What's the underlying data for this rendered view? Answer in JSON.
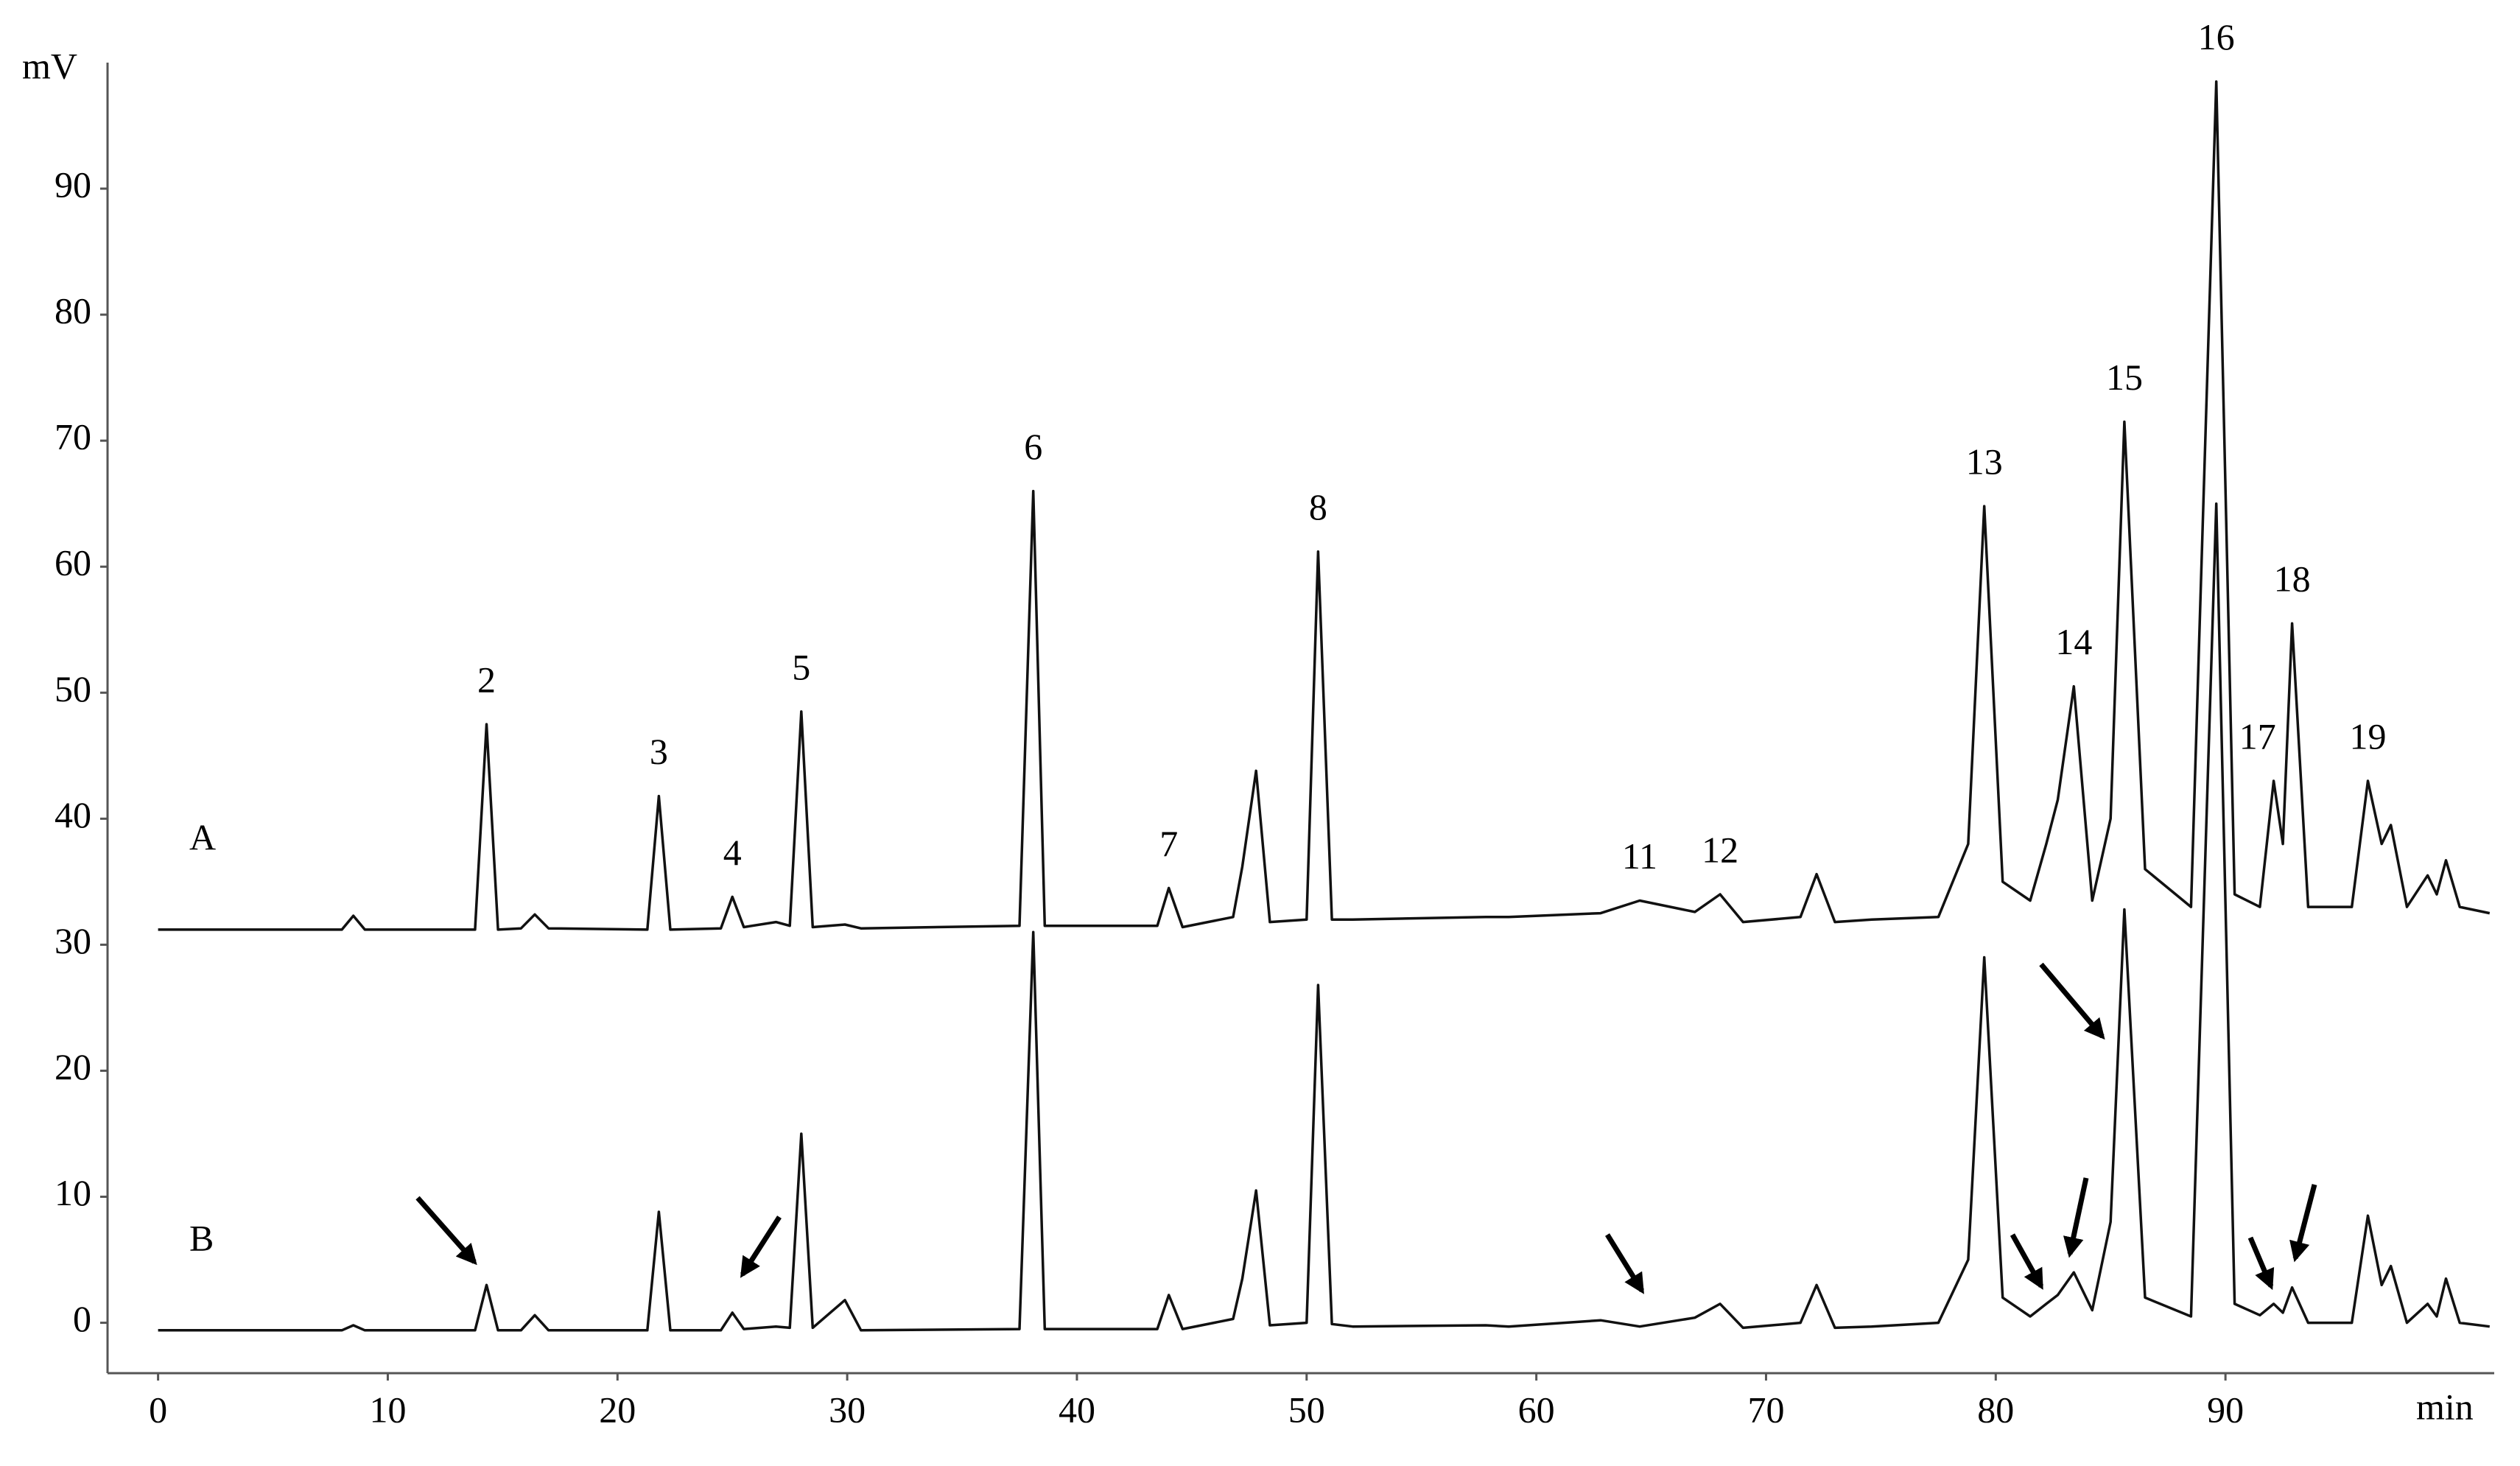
{
  "chart_data": {
    "type": "line",
    "y_label": "mV",
    "x_label": "min",
    "xlim": [
      -2.2,
      101.7
    ],
    "ylim": [
      -4,
      100
    ],
    "xticks": [
      0,
      10,
      20,
      30,
      40,
      50,
      60,
      70,
      80,
      90
    ],
    "yticks": [
      0,
      10,
      20,
      30,
      40,
      50,
      60,
      70,
      80,
      90
    ],
    "grid": false,
    "x": [
      0,
      2,
      8.0,
      8.5,
      9.0,
      13.8,
      14.3,
      14.8,
      15.8,
      16.4,
      17.0,
      21.3,
      21.8,
      22.3,
      24.5,
      25.0,
      25.5,
      26.9,
      27.5,
      28.0,
      28.5,
      29.9,
      30.6,
      37.5,
      38.1,
      38.6,
      43.5,
      44.0,
      44.6,
      46.8,
      47.2,
      47.8,
      48.4,
      50.0,
      50.5,
      51.1,
      52.0,
      57.8,
      58.8,
      62.8,
      64.5,
      66.9,
      68.0,
      69.0,
      71.5,
      72.2,
      73.0,
      74.6,
      77.5,
      78.8,
      79.5,
      80.3,
      81.5,
      82.2,
      82.7,
      83.4,
      84.2,
      85.0,
      85.6,
      86.5,
      88.5,
      89.6,
      90.4,
      91.5,
      92.1,
      92.5,
      92.9,
      93.6,
      95.5,
      96.2,
      96.8,
      97.2,
      97.9,
      98.8,
      99.2,
      99.6,
      100.2,
      101.5
    ],
    "series": [
      {
        "name": "A",
        "color": "#111111",
        "values": [
          31.2,
          31.2,
          31.2,
          32.3,
          31.2,
          31.2,
          47.5,
          31.2,
          31.3,
          32.4,
          31.3,
          31.2,
          41.8,
          31.2,
          31.3,
          33.8,
          31.4,
          31.8,
          31.5,
          48.5,
          31.4,
          31.6,
          31.3,
          31.5,
          66.0,
          31.5,
          31.5,
          34.5,
          31.4,
          32.2,
          36.2,
          43.8,
          31.8,
          32.0,
          61.2,
          32.0,
          32.0,
          32.2,
          32.2,
          32.5,
          33.5,
          32.6,
          34.0,
          31.8,
          32.2,
          35.6,
          31.8,
          32.0,
          32.2,
          38,
          64.8,
          35,
          33.5,
          38,
          41.5,
          50.5,
          33.5,
          40,
          71.5,
          36,
          33,
          98.5,
          34,
          33,
          43.0,
          38,
          55.5,
          33,
          33,
          43.0,
          38,
          39.5,
          33,
          35.5,
          34,
          36.7,
          33,
          32.5
        ]
      },
      {
        "name": "B",
        "color": "#111111",
        "values": [
          -0.6,
          -0.6,
          -0.6,
          -0.2,
          -0.6,
          -0.6,
          3.0,
          -0.6,
          -0.6,
          0.6,
          -0.6,
          -0.6,
          8.8,
          -0.6,
          -0.6,
          0.8,
          -0.5,
          -0.3,
          -0.4,
          15.0,
          -0.4,
          1.8,
          -0.6,
          -0.5,
          31.0,
          -0.5,
          -0.5,
          2.2,
          -0.5,
          0.3,
          3.5,
          10.5,
          -0.2,
          0,
          26.8,
          -0.1,
          -0.3,
          -0.2,
          -0.3,
          0.2,
          -0.3,
          0.4,
          1.5,
          -0.4,
          0,
          3.0,
          -0.4,
          -0.3,
          0,
          5,
          29.0,
          2,
          0.5,
          1.5,
          2.2,
          4.0,
          1,
          8,
          32.8,
          2,
          0.5,
          65.0,
          1.5,
          0.6,
          1.5,
          0.8,
          2.8,
          0,
          0,
          8.5,
          3,
          4.5,
          0,
          1.5,
          0.5,
          3.5,
          0,
          -0.3
        ]
      }
    ],
    "annotations": [
      {
        "text": "2",
        "x": 14.3,
        "y": 47.5
      },
      {
        "text": "3",
        "x": 21.8,
        "y": 41.8
      },
      {
        "text": "4",
        "x": 25.0,
        "y": 33.8
      },
      {
        "text": "5",
        "x": 28.0,
        "y": 48.5
      },
      {
        "text": "6",
        "x": 38.1,
        "y": 66.0
      },
      {
        "text": "7",
        "x": 44.0,
        "y": 34.5
      },
      {
        "text": "8",
        "x": 50.5,
        "y": 61.2
      },
      {
        "text": "11",
        "x": 64.5,
        "y": 33.5
      },
      {
        "text": "12",
        "x": 68.0,
        "y": 34.0
      },
      {
        "text": "13",
        "x": 79.5,
        "y": 64.8
      },
      {
        "text": "14",
        "x": 83.4,
        "y": 50.5
      },
      {
        "text": "15",
        "x": 85.6,
        "y": 71.5
      },
      {
        "text": "16",
        "x": 89.6,
        "y": 98.5
      },
      {
        "text": "17",
        "x": 91.4,
        "y": 43.0
      },
      {
        "text": "18",
        "x": 92.9,
        "y": 55.5
      },
      {
        "text": "19",
        "x": 96.2,
        "y": 43.0
      }
    ]
  }
}
